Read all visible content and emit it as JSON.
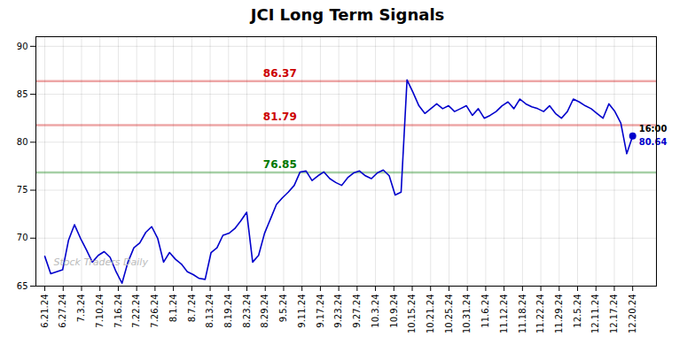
{
  "chart_data": {
    "type": "line",
    "title": "JCI Long Term Signals",
    "color": "#0000cc",
    "grid": true,
    "x": [
      0,
      1,
      2,
      3,
      4,
      5,
      6,
      7,
      8,
      9,
      10,
      11,
      12,
      13,
      14,
      15,
      16,
      17,
      18,
      19,
      20,
      21,
      22,
      23,
      24,
      25,
      26,
      27,
      28,
      29,
      30,
      31,
      32,
      33,
      34,
      35,
      36,
      37,
      38,
      39,
      40,
      41,
      42,
      43,
      44,
      45,
      46,
      47,
      48,
      49,
      50,
      51,
      52,
      53,
      54,
      55,
      56,
      57,
      58,
      59,
      60,
      61,
      62,
      63,
      64,
      65,
      66,
      67,
      68,
      69,
      70,
      71,
      72,
      73,
      74,
      75,
      76,
      77,
      78,
      79,
      80,
      81,
      82,
      83,
      84,
      85,
      86,
      87,
      88,
      89,
      90,
      91,
      92,
      93,
      94,
      95,
      96,
      97,
      98,
      99
    ],
    "values": [
      68.1,
      66.3,
      66.5,
      66.7,
      69.8,
      71.4,
      70.0,
      68.8,
      67.5,
      68.2,
      68.6,
      68.0,
      66.5,
      65.3,
      67.5,
      69.0,
      69.5,
      70.6,
      71.2,
      70.0,
      67.5,
      68.5,
      67.8,
      67.3,
      66.5,
      66.2,
      65.8,
      65.7,
      68.5,
      69.0,
      70.3,
      70.5,
      71.0,
      71.8,
      72.7,
      67.5,
      68.2,
      70.5,
      72.0,
      73.5,
      74.2,
      74.8,
      75.5,
      76.9,
      77.0,
      76.0,
      76.5,
      76.9,
      76.2,
      75.8,
      75.5,
      76.3,
      76.8,
      77.0,
      76.5,
      76.2,
      76.8,
      77.1,
      76.5,
      74.5,
      74.8,
      86.5,
      85.2,
      83.8,
      83.0,
      83.5,
      84.0,
      83.5,
      83.8,
      83.2,
      83.5,
      83.8,
      82.8,
      83.5,
      82.5,
      82.8,
      83.2,
      83.8,
      84.2,
      83.5,
      84.5,
      84.0,
      83.7,
      83.5,
      83.2,
      83.8,
      83.0,
      82.5,
      83.2,
      84.5,
      84.2,
      83.8,
      83.5,
      83.0,
      82.5,
      84.0,
      83.2,
      82.0,
      78.8,
      80.64
    ],
    "xlim": [
      -1.5,
      103
    ],
    "xticks": [
      {
        "value": 0,
        "label": "6.21.24"
      },
      {
        "value": 3.09375,
        "label": "6.27.24"
      },
      {
        "value": 6.1875,
        "label": "7.3.24"
      },
      {
        "value": 9.28125,
        "label": "7.10.24"
      },
      {
        "value": 12.375,
        "label": "7.16.24"
      },
      {
        "value": 15.46875,
        "label": "7.22.24"
      },
      {
        "value": 18.5625,
        "label": "7.26.24"
      },
      {
        "value": 21.65625,
        "label": "8.1.24"
      },
      {
        "value": 24.75,
        "label": "8.7.24"
      },
      {
        "value": 27.84375,
        "label": "8.13.24"
      },
      {
        "value": 30.9375,
        "label": "8.19.24"
      },
      {
        "value": 34.03125,
        "label": "8.23.24"
      },
      {
        "value": 37.125,
        "label": "8.29.24"
      },
      {
        "value": 40.21875,
        "label": "9.5.24"
      },
      {
        "value": 43.3125,
        "label": "9.11.24"
      },
      {
        "value": 46.40625,
        "label": "9.17.24"
      },
      {
        "value": 49.5,
        "label": "9.23.24"
      },
      {
        "value": 52.59375,
        "label": "9.27.24"
      },
      {
        "value": 55.6875,
        "label": "10.3.24"
      },
      {
        "value": 58.78125,
        "label": "10.9.24"
      },
      {
        "value": 61.875,
        "label": "10.15.24"
      },
      {
        "value": 64.96875,
        "label": "10.21.24"
      },
      {
        "value": 68.0625,
        "label": "10.25.24"
      },
      {
        "value": 71.15625,
        "label": "10.31.24"
      },
      {
        "value": 74.25,
        "label": "11.6.24"
      },
      {
        "value": 77.34375,
        "label": "11.12.24"
      },
      {
        "value": 80.4375,
        "label": "11.18.24"
      },
      {
        "value": 83.53125,
        "label": "11.22.24"
      },
      {
        "value": 86.625,
        "label": "11.29.24"
      },
      {
        "value": 89.71875,
        "label": "12.5.24"
      },
      {
        "value": 92.8125,
        "label": "12.11.24"
      },
      {
        "value": 95.90625,
        "label": "12.17.24"
      },
      {
        "value": 99,
        "label": "12.20.24"
      }
    ],
    "ylim": [
      65,
      91
    ],
    "yticks": [
      65,
      70,
      75,
      80,
      85,
      90
    ],
    "hlines": [
      {
        "value": 86.37,
        "label": "86.37",
        "color": "#cc0000"
      },
      {
        "value": 81.79,
        "label": "81.79",
        "color": "#cc0000"
      },
      {
        "value": 76.85,
        "label": "76.85",
        "color": "#007700"
      }
    ],
    "points": [
      {
        "x": 99,
        "y": 80.64,
        "color": "#0000cc"
      }
    ],
    "annotations": [
      {
        "text": "16:00",
        "x": 99,
        "y": 80.64,
        "color": "#000000"
      },
      {
        "text": "80.64",
        "x": 99,
        "y": 80.64,
        "color": "#0000cc"
      }
    ],
    "watermark": {
      "text": "Stock Traders Daily",
      "color": "#bbbbbb"
    }
  }
}
